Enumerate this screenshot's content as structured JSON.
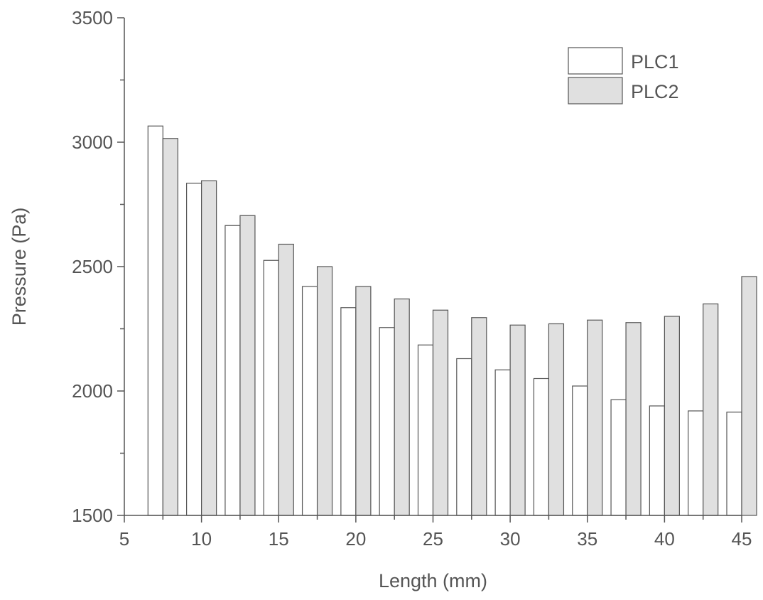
{
  "chart_data": {
    "type": "bar",
    "title": "",
    "xlabel": "Length (mm)",
    "ylabel": "Pressure (Pa)",
    "xlim": [
      5,
      45
    ],
    "ylim": [
      1500,
      3500
    ],
    "x_ticks": [
      5,
      10,
      15,
      20,
      25,
      30,
      35,
      40,
      45
    ],
    "y_ticks": [
      1500,
      2000,
      2500,
      3000,
      3500
    ],
    "x": [
      7.5,
      10,
      12.5,
      15,
      17.5,
      20,
      22.5,
      25,
      27.5,
      30,
      32.5,
      35,
      37.5,
      40,
      42.5,
      45
    ],
    "series": [
      {
        "name": "PLC1",
        "color": "#ffffff",
        "values": [
          3065,
          2835,
          2665,
          2525,
          2420,
          2335,
          2255,
          2185,
          2130,
          2085,
          2050,
          2020,
          1965,
          1940,
          1920,
          1915
        ]
      },
      {
        "name": "PLC2",
        "color": "#e0e0e0",
        "values": [
          3015,
          2845,
          2705,
          2590,
          2500,
          2420,
          2370,
          2325,
          2295,
          2265,
          2270,
          2285,
          2275,
          2300,
          2350,
          2460
        ]
      }
    ],
    "legend_position": "top-right",
    "grid": false,
    "bar_stroke": "#555555",
    "axis_color": "#555555"
  }
}
